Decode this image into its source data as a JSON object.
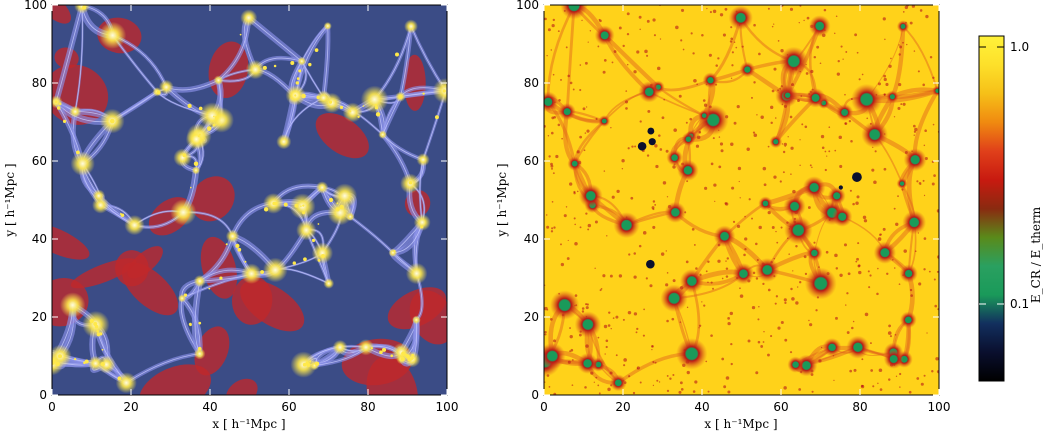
{
  "left_panel": {
    "x_label": "x [ h⁻¹Mpc ]",
    "y_label": "y [ h⁻¹Mpc ]",
    "x_ticks": [
      "0",
      "20",
      "40",
      "60",
      "80",
      "100"
    ],
    "y_ticks": [
      "0",
      "20",
      "40",
      "60",
      "80",
      "100"
    ],
    "colors": {
      "bg": "#3b4c86",
      "filament": "#8a90e8",
      "void": "#c0282a",
      "node": "#ffe94a"
    }
  },
  "right_panel": {
    "x_label": "x [ h⁻¹Mpc ]",
    "y_label": "y [ h⁻¹Mpc ]",
    "x_ticks": [
      "0",
      "20",
      "40",
      "60",
      "80",
      "100"
    ],
    "y_ticks": [
      "0",
      "20",
      "40",
      "60",
      "80",
      "100"
    ],
    "colors": {
      "bg": "#ffd21a",
      "filament": "#e0601a",
      "halo": "#b81818",
      "core": "#1d9a5a"
    }
  },
  "colorbar": {
    "label": "E_CR / E_therm",
    "ticks": [
      "1.0",
      "0.1"
    ],
    "stops": [
      "#000000",
      "#0a0f2e",
      "#122f5e",
      "#1a9a5a",
      "#2aa060",
      "#5a8a1a",
      "#8a2a10",
      "#c81a10",
      "#e0401a",
      "#f08a10",
      "#f6c018",
      "#fde02a",
      "#fff23a"
    ]
  }
}
